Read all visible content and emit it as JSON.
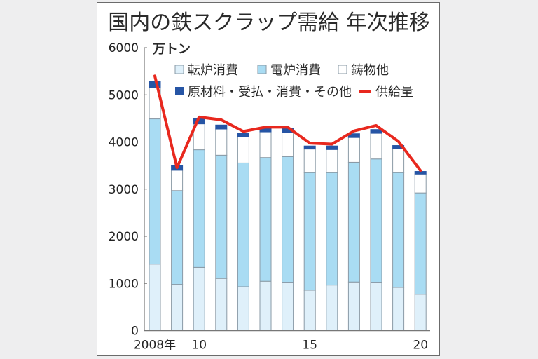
{
  "chart_data": {
    "type": "bar",
    "stacked": true,
    "title": "国内の鉄スクラップ需給 年次推移",
    "unit_label": "万トン",
    "xlabel": "",
    "ylabel": "万トン",
    "ylim": [
      0,
      6000
    ],
    "yticks": [
      0,
      1000,
      2000,
      3000,
      4000,
      5000,
      6000
    ],
    "grid": false,
    "legend_position": "top-inside",
    "categories": [
      "2008",
      "2009",
      "2010",
      "2011",
      "2012",
      "2013",
      "2014",
      "2015",
      "2016",
      "2017",
      "2018",
      "2019",
      "2020"
    ],
    "xtick_labels": [
      {
        "index": 0,
        "label": "2008年"
      },
      {
        "index": 2,
        "label": "10"
      },
      {
        "index": 7,
        "label": "15"
      },
      {
        "index": 12,
        "label": "20"
      }
    ],
    "series": [
      {
        "name": "転炉消費",
        "kind": "bar",
        "color": "#dff0fa",
        "values": [
          1410,
          980,
          1340,
          1105,
          930,
          1045,
          1025,
          855,
          965,
          1030,
          1025,
          915,
          770
        ]
      },
      {
        "name": "電炉消費",
        "kind": "bar",
        "color": "#a9dcf3",
        "values": [
          3080,
          1990,
          2495,
          2615,
          2625,
          2625,
          2665,
          2495,
          2385,
          2540,
          2615,
          2435,
          2150
        ]
      },
      {
        "name": "鋳物他",
        "kind": "bar",
        "color": "#ffffff",
        "values": [
          665,
          430,
          550,
          555,
          560,
          545,
          510,
          500,
          490,
          525,
          545,
          505,
          400
        ]
      },
      {
        "name": "原材料・受払・消費・その他",
        "kind": "bar",
        "color": "#2655a5",
        "values": [
          135,
          95,
          115,
          85,
          70,
          70,
          85,
          65,
          75,
          80,
          80,
          70,
          55
        ]
      },
      {
        "name": "供給量",
        "kind": "line",
        "color": "#e8281e",
        "values": [
          5400,
          3455,
          4530,
          4470,
          4225,
          4315,
          4315,
          3975,
          3955,
          4235,
          4350,
          4015,
          3395
        ]
      }
    ]
  },
  "legend": {
    "row1": [
      "転炉消費",
      "電炉消費",
      "鋳物他"
    ],
    "row2": [
      "原材料・受払・消費・その他",
      "供給量"
    ]
  },
  "colors": {
    "background": "#eeeeef",
    "bar_outline": "#8a9aa6",
    "axis": "#777777",
    "text": "#2a2a2a"
  }
}
